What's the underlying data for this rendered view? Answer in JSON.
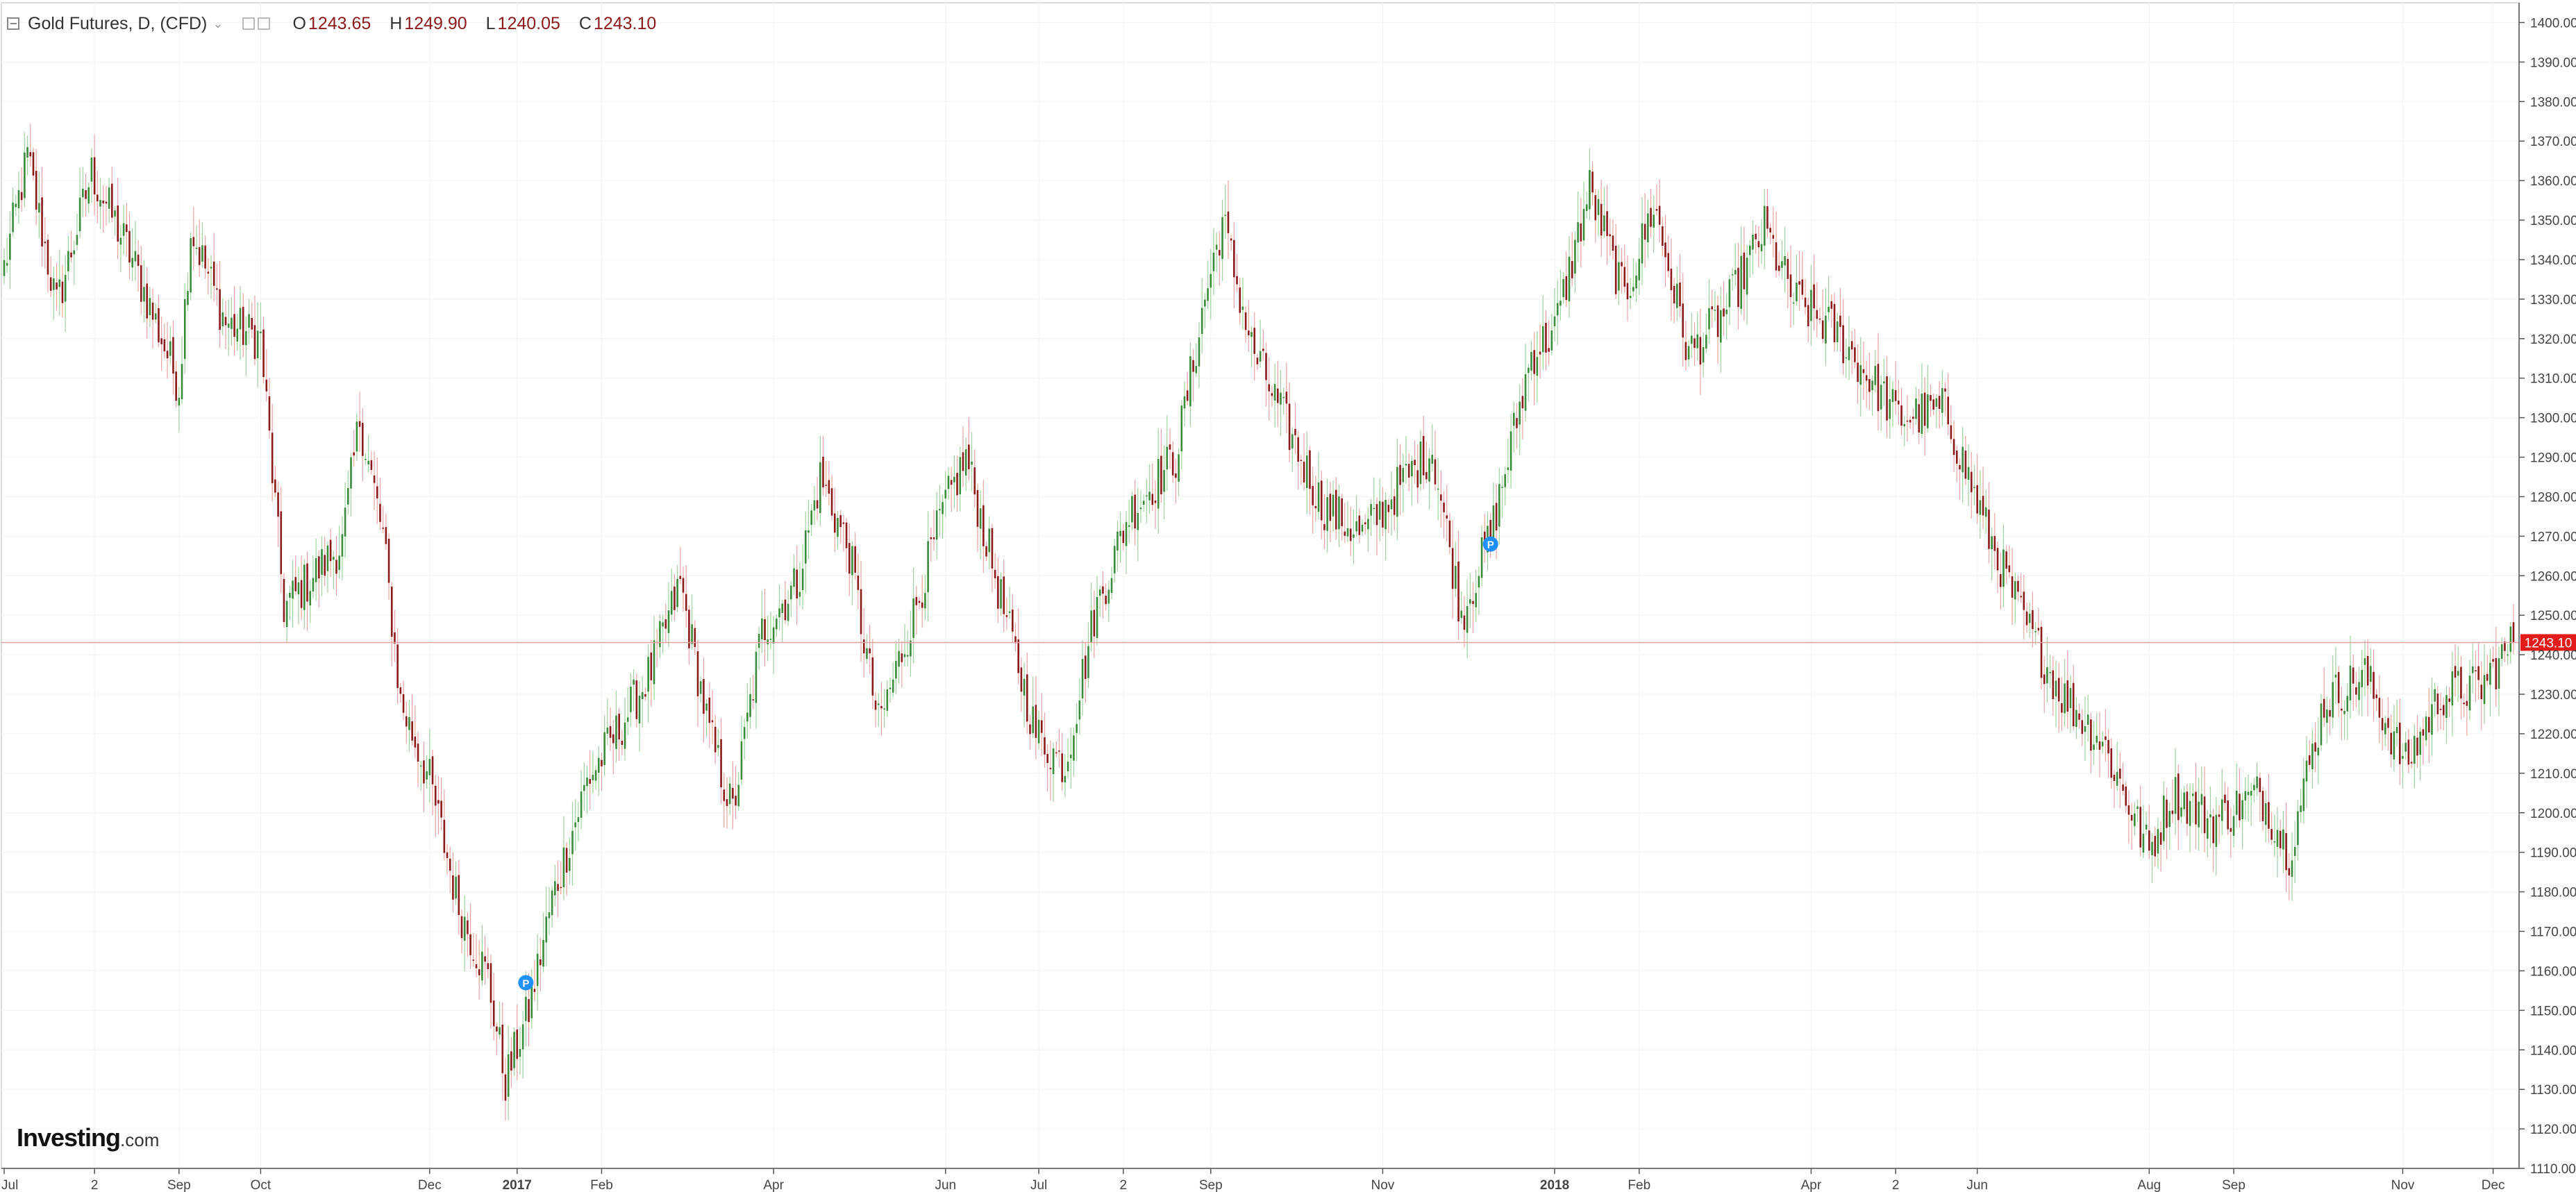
{
  "legend": {
    "title": "Gold Futures, D, (CFD)",
    "caret": "⌄",
    "open_label": "O",
    "open": "1243.65",
    "high_label": "H",
    "high": "1249.90",
    "low_label": "L",
    "low": "1240.05",
    "close_label": "C",
    "close": "1243.10"
  },
  "logo": {
    "brand": "Investing",
    "suffix": ".com"
  },
  "colors": {
    "up": "#3a8c3a",
    "down": "#8b1a1a",
    "wick_up": "#9ed19e",
    "wick_down": "#e7a3a3",
    "price_line": "#e8a0a0",
    "price_badge": "#e31b1b",
    "marker": "#1e90ff",
    "grid": "#f3f3f3",
    "axis": "#555555"
  },
  "chart_data": {
    "type": "candlestick",
    "title": "Gold Futures, D, (CFD)",
    "xlabel": "",
    "ylabel": "",
    "ylim": [
      1110,
      1405
    ],
    "yticks": [
      1110,
      1120,
      1130,
      1140,
      1150,
      1160,
      1170,
      1180,
      1190,
      1200,
      1210,
      1220,
      1230,
      1240,
      1250,
      1260,
      1270,
      1280,
      1290,
      1300,
      1310,
      1320,
      1330,
      1340,
      1350,
      1360,
      1370,
      1380,
      1390,
      1400
    ],
    "ytick_labels": [
      "1110.00",
      "1120.00",
      "1130.00",
      "1140.00",
      "1150.00",
      "1160.00",
      "1170.00",
      "1180.00",
      "1190.00",
      "1200.00",
      "1210.00",
      "1220.00",
      "1230.00",
      "1240.00",
      "1250.00",
      "1260.00",
      "1270.00",
      "1280.00",
      "1290.00",
      "1300.00",
      "1310.00",
      "1320.00",
      "1330.00",
      "1340.00",
      "1350.00",
      "1360.00",
      "1370.00",
      "1380.00",
      "1390.00",
      "1400.00"
    ],
    "x_tick_labels": [
      "Jul",
      "2",
      "Sep",
      "Oct",
      "Dec",
      "2017",
      "Feb",
      "Apr",
      "Jun",
      "Jul",
      "2",
      "Sep",
      "Nov",
      "2018",
      "Feb",
      "Apr",
      "2",
      "Jun",
      "Aug",
      "Sep",
      "Nov",
      "Dec"
    ],
    "x_tick_bold": [
      false,
      false,
      false,
      false,
      false,
      true,
      false,
      false,
      false,
      false,
      false,
      false,
      false,
      true,
      false,
      false,
      false,
      false,
      false,
      false,
      false,
      false
    ],
    "x_tick_index": [
      0,
      31,
      60,
      88,
      146,
      176,
      205,
      264,
      323,
      355,
      384,
      414,
      473,
      532,
      561,
      620,
      649,
      677,
      736,
      765,
      823,
      854
    ],
    "n_bars": 862,
    "anchors": [
      [
        0,
        1338
      ],
      [
        8,
        1366
      ],
      [
        18,
        1328
      ],
      [
        30,
        1362
      ],
      [
        44,
        1340
      ],
      [
        60,
        1308
      ],
      [
        64,
        1348
      ],
      [
        76,
        1324
      ],
      [
        88,
        1320
      ],
      [
        96,
        1252
      ],
      [
        116,
        1268
      ],
      [
        122,
        1300
      ],
      [
        130,
        1270
      ],
      [
        136,
        1228
      ],
      [
        146,
        1208
      ],
      [
        156,
        1176
      ],
      [
        166,
        1158
      ],
      [
        172,
        1132
      ],
      [
        180,
        1150
      ],
      [
        188,
        1178
      ],
      [
        200,
        1208
      ],
      [
        210,
        1220
      ],
      [
        222,
        1236
      ],
      [
        232,
        1258
      ],
      [
        242,
        1220
      ],
      [
        250,
        1200
      ],
      [
        260,
        1246
      ],
      [
        272,
        1258
      ],
      [
        280,
        1285
      ],
      [
        290,
        1266
      ],
      [
        300,
        1222
      ],
      [
        312,
        1250
      ],
      [
        322,
        1276
      ],
      [
        330,
        1290
      ],
      [
        344,
        1248
      ],
      [
        354,
        1220
      ],
      [
        364,
        1212
      ],
      [
        374,
        1250
      ],
      [
        386,
        1276
      ],
      [
        402,
        1290
      ],
      [
        412,
        1330
      ],
      [
        418,
        1350
      ],
      [
        428,
        1318
      ],
      [
        440,
        1298
      ],
      [
        452,
        1278
      ],
      [
        466,
        1270
      ],
      [
        478,
        1282
      ],
      [
        490,
        1292
      ],
      [
        500,
        1250
      ],
      [
        510,
        1270
      ],
      [
        524,
        1316
      ],
      [
        532,
        1322
      ],
      [
        544,
        1358
      ],
      [
        556,
        1330
      ],
      [
        566,
        1354
      ],
      [
        578,
        1316
      ],
      [
        590,
        1326
      ],
      [
        604,
        1348
      ],
      [
        614,
        1330
      ],
      [
        628,
        1322
      ],
      [
        640,
        1310
      ],
      [
        650,
        1300
      ],
      [
        666,
        1302
      ],
      [
        680,
        1272
      ],
      [
        692,
        1250
      ],
      [
        706,
        1230
      ],
      [
        720,
        1218
      ],
      [
        736,
        1190
      ],
      [
        744,
        1205
      ],
      [
        758,
        1198
      ],
      [
        774,
        1205
      ],
      [
        784,
        1190
      ],
      [
        796,
        1228
      ],
      [
        810,
        1235
      ],
      [
        824,
        1212
      ],
      [
        836,
        1230
      ],
      [
        850,
        1232
      ],
      [
        862,
        1244
      ]
    ],
    "close_price": 1243.1,
    "close_label": "1243.10",
    "markers": [
      {
        "label": "P",
        "x_index": 179,
        "price": 1157
      },
      {
        "label": "P",
        "x_index": 510,
        "price": 1268
      }
    ]
  }
}
